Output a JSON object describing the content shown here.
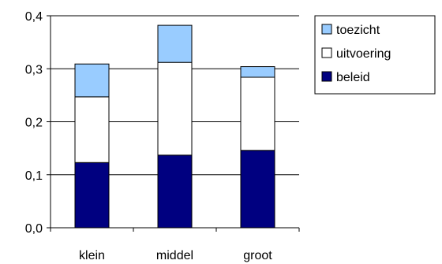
{
  "chart_data": {
    "type": "bar",
    "stacked": true,
    "categories": [
      "klein",
      "middel",
      "groot"
    ],
    "series": [
      {
        "name": "beleid",
        "values": [
          0.123,
          0.137,
          0.146
        ],
        "color": "#000080"
      },
      {
        "name": "uitvoering",
        "values": [
          0.124,
          0.175,
          0.138
        ],
        "color": "#ffffff"
      },
      {
        "name": "toezicht",
        "values": [
          0.062,
          0.07,
          0.02
        ],
        "color": "#99ccff"
      }
    ],
    "ylim": [
      0,
      0.4
    ],
    "yticks": [
      0,
      0.1,
      0.2,
      0.3,
      0.4
    ],
    "ytick_labels": [
      "0,0",
      "0,1",
      "0,2",
      "0,3",
      "0,4"
    ],
    "grid": true,
    "legend_position": "top-right",
    "title": "",
    "xlabel": "",
    "ylabel": ""
  }
}
